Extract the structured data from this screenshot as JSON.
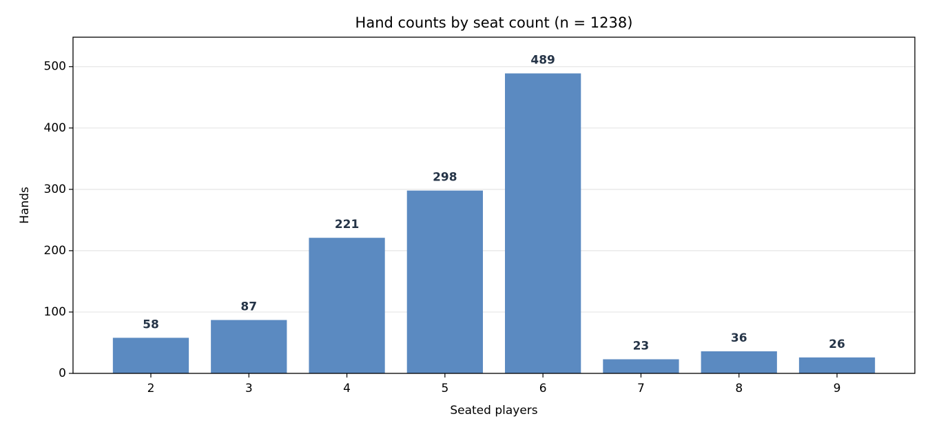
{
  "chart_data": {
    "type": "bar",
    "title": "Hand counts by seat count (n = 1238)",
    "x_label": "Seated players",
    "y_label": "Hands",
    "categories": [
      "2",
      "3",
      "4",
      "5",
      "6",
      "7",
      "8",
      "9"
    ],
    "values": [
      58,
      87,
      221,
      298,
      489,
      23,
      36,
      26
    ],
    "color": "#5b8ac1",
    "ylim": [
      0,
      548
    ],
    "yticks": [
      0,
      100,
      200,
      300,
      400,
      500
    ],
    "grid": true
  }
}
